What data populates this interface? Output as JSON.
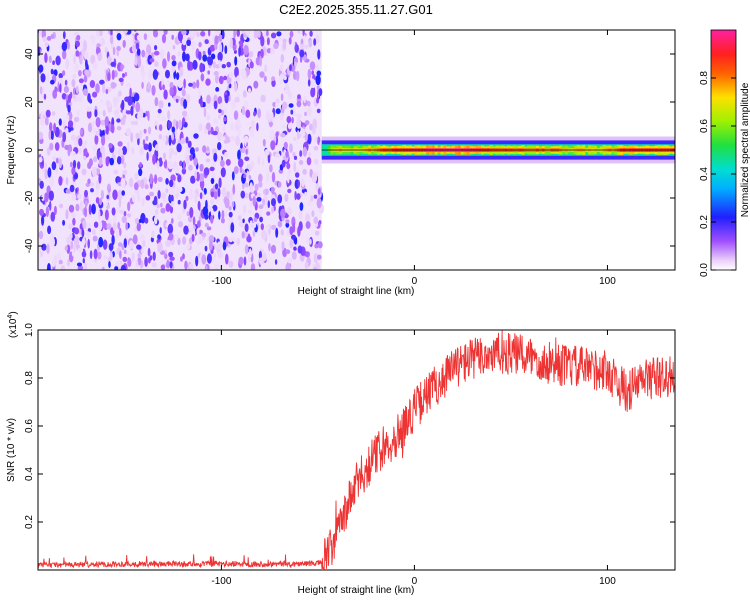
{
  "title": "C2E2.2025.355.11.27.G01",
  "chart_data": [
    {
      "type": "heatmap",
      "title": "",
      "xlabel": "Height of straight line (km)",
      "ylabel": "Frequency (Hz)",
      "xlim": [
        -195,
        135
      ],
      "ylim": [
        -50,
        50
      ],
      "x_ticks": [
        -100,
        0,
        100
      ],
      "y_ticks": [
        -40,
        -20,
        0,
        20,
        40
      ],
      "noise_region_x": [
        -195,
        -48
      ],
      "signal_band": {
        "x_range": [
          -48,
          135
        ],
        "center_hz": 0,
        "half_width_hz": 4,
        "profile": [
          {
            "x": -48,
            "amp": 0.45
          },
          {
            "x": -40,
            "amp": 0.75
          },
          {
            "x": -30,
            "amp": 0.7
          },
          {
            "x": -15,
            "amp": 0.85
          },
          {
            "x": 0,
            "amp": 0.95
          },
          {
            "x": 20,
            "amp": 1.0
          },
          {
            "x": 45,
            "amp": 0.85
          },
          {
            "x": 70,
            "amp": 0.8
          },
          {
            "x": 95,
            "amp": 0.7
          },
          {
            "x": 110,
            "amp": 0.9
          },
          {
            "x": 135,
            "amp": 0.88
          }
        ]
      },
      "colorbar": {
        "label": "Normalized spectral amplitude",
        "range": [
          0,
          1
        ],
        "ticks": [
          0.0,
          0.2,
          0.4,
          0.6,
          0.8
        ]
      }
    },
    {
      "type": "line",
      "title": "",
      "xlabel": "Height of straight line (km)",
      "ylabel": "SNR (10 * v/v)",
      "y_multiplier": "(x10",
      "y_multiplier_exp": "4",
      "xlim": [
        -195,
        135
      ],
      "ylim": [
        0,
        1.0
      ],
      "x_ticks": [
        -100,
        0,
        100
      ],
      "y_ticks": [
        0.2,
        0.4,
        0.6,
        0.8,
        1.0
      ],
      "color": "#ee3333",
      "series": [
        {
          "x": [
            -195,
            -150,
            -100,
            -60,
            -48,
            -42,
            -35,
            -30,
            -25,
            -20,
            -15,
            -10,
            -5,
            0,
            10,
            20,
            30,
            40,
            50,
            60,
            70,
            80,
            90,
            100,
            110,
            120,
            130,
            135
          ],
          "y": [
            0.02,
            0.025,
            0.025,
            0.025,
            0.03,
            0.1,
            0.26,
            0.36,
            0.42,
            0.48,
            0.52,
            0.55,
            0.6,
            0.67,
            0.76,
            0.84,
            0.88,
            0.9,
            0.9,
            0.89,
            0.86,
            0.85,
            0.84,
            0.83,
            0.74,
            0.8,
            0.8,
            0.82
          ]
        }
      ]
    }
  ]
}
